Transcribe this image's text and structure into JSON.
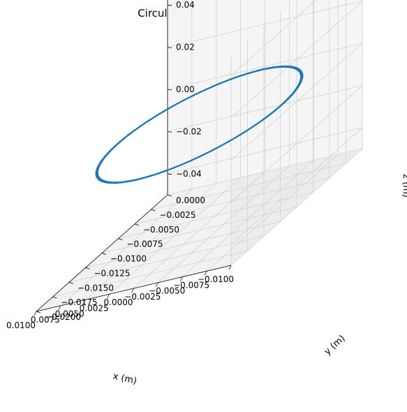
{
  "chart_data": {
    "type": "line",
    "projection": "3d",
    "title": "Circular Motion (v ⊥ B)",
    "xlabel": "x (m)",
    "ylabel": "y (m)",
    "zlabel": "z (m)",
    "xlim": [
      -0.01,
      0.01
    ],
    "ylim": [
      -0.02,
      0.0
    ],
    "zlim": [
      -0.05,
      0.05
    ],
    "x_ticks": [
      "−0.0100",
      "−0.0075",
      "−0.0050",
      "−0.0025",
      "0.0000",
      "0.0025",
      "0.0050",
      "0.0075",
      "0.0100"
    ],
    "y_ticks": [
      "0.0000",
      "−0.0025",
      "−0.0050",
      "−0.0075",
      "−0.0100",
      "−0.0125",
      "−0.0150",
      "−0.0175",
      "−0.0200"
    ],
    "z_ticks": [
      "0.04",
      "0.02",
      "0.00",
      "−0.02",
      "−0.04"
    ],
    "grid": true,
    "series": [
      {
        "color": "#1f77b4",
        "trajectory": {
          "kind": "circular-orbit",
          "center": [
            0.0,
            -0.01,
            0.0
          ],
          "radius_x": 0.0085,
          "radius_y": 0.0095,
          "z": 0.0,
          "points_per_turn": 15.3,
          "total_points": 1000
        }
      }
    ]
  }
}
